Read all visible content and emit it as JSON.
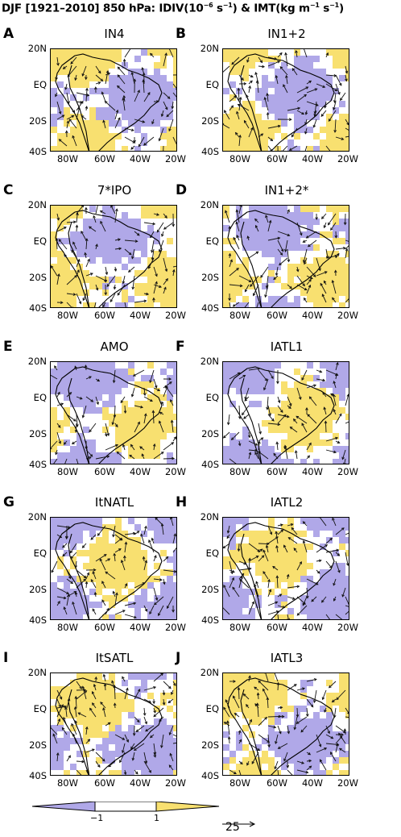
{
  "header": {
    "title_pre": "DJF [1921–2010] 850 hPa: IDIV(10",
    "title_exp1": "−6",
    "title_mid": " s",
    "title_exp2": "−1",
    "title_mid2": ") & IMT(kg m",
    "title_exp3": "−1",
    "title_mid3": " s",
    "title_exp4": "−1",
    "title_end": ")"
  },
  "axes": {
    "lat_ticks": [
      "20N",
      "EQ",
      "20S",
      "40S"
    ],
    "lon_ticks": [
      "80W",
      "60W",
      "40W",
      "20W"
    ]
  },
  "panels": [
    {
      "letter": "A",
      "name": "IN4"
    },
    {
      "letter": "B",
      "name": "IN1+2"
    },
    {
      "letter": "C",
      "name": "7*IPO"
    },
    {
      "letter": "D",
      "name": "IN1+2*"
    },
    {
      "letter": "E",
      "name": "AMO"
    },
    {
      "letter": "F",
      "name": "IATL1"
    },
    {
      "letter": "G",
      "name": "ItNATL"
    },
    {
      "letter": "H",
      "name": "IATL2"
    },
    {
      "letter": "I",
      "name": "ItSATL"
    },
    {
      "letter": "J",
      "name": "IATL3"
    }
  ],
  "legend": {
    "colorbar_labels": [
      "−1",
      "1"
    ],
    "reference_vector": "25",
    "colors": {
      "negative": "#b0a8e8",
      "neutral": "#ffffff",
      "positive": "#f8e070"
    }
  }
}
